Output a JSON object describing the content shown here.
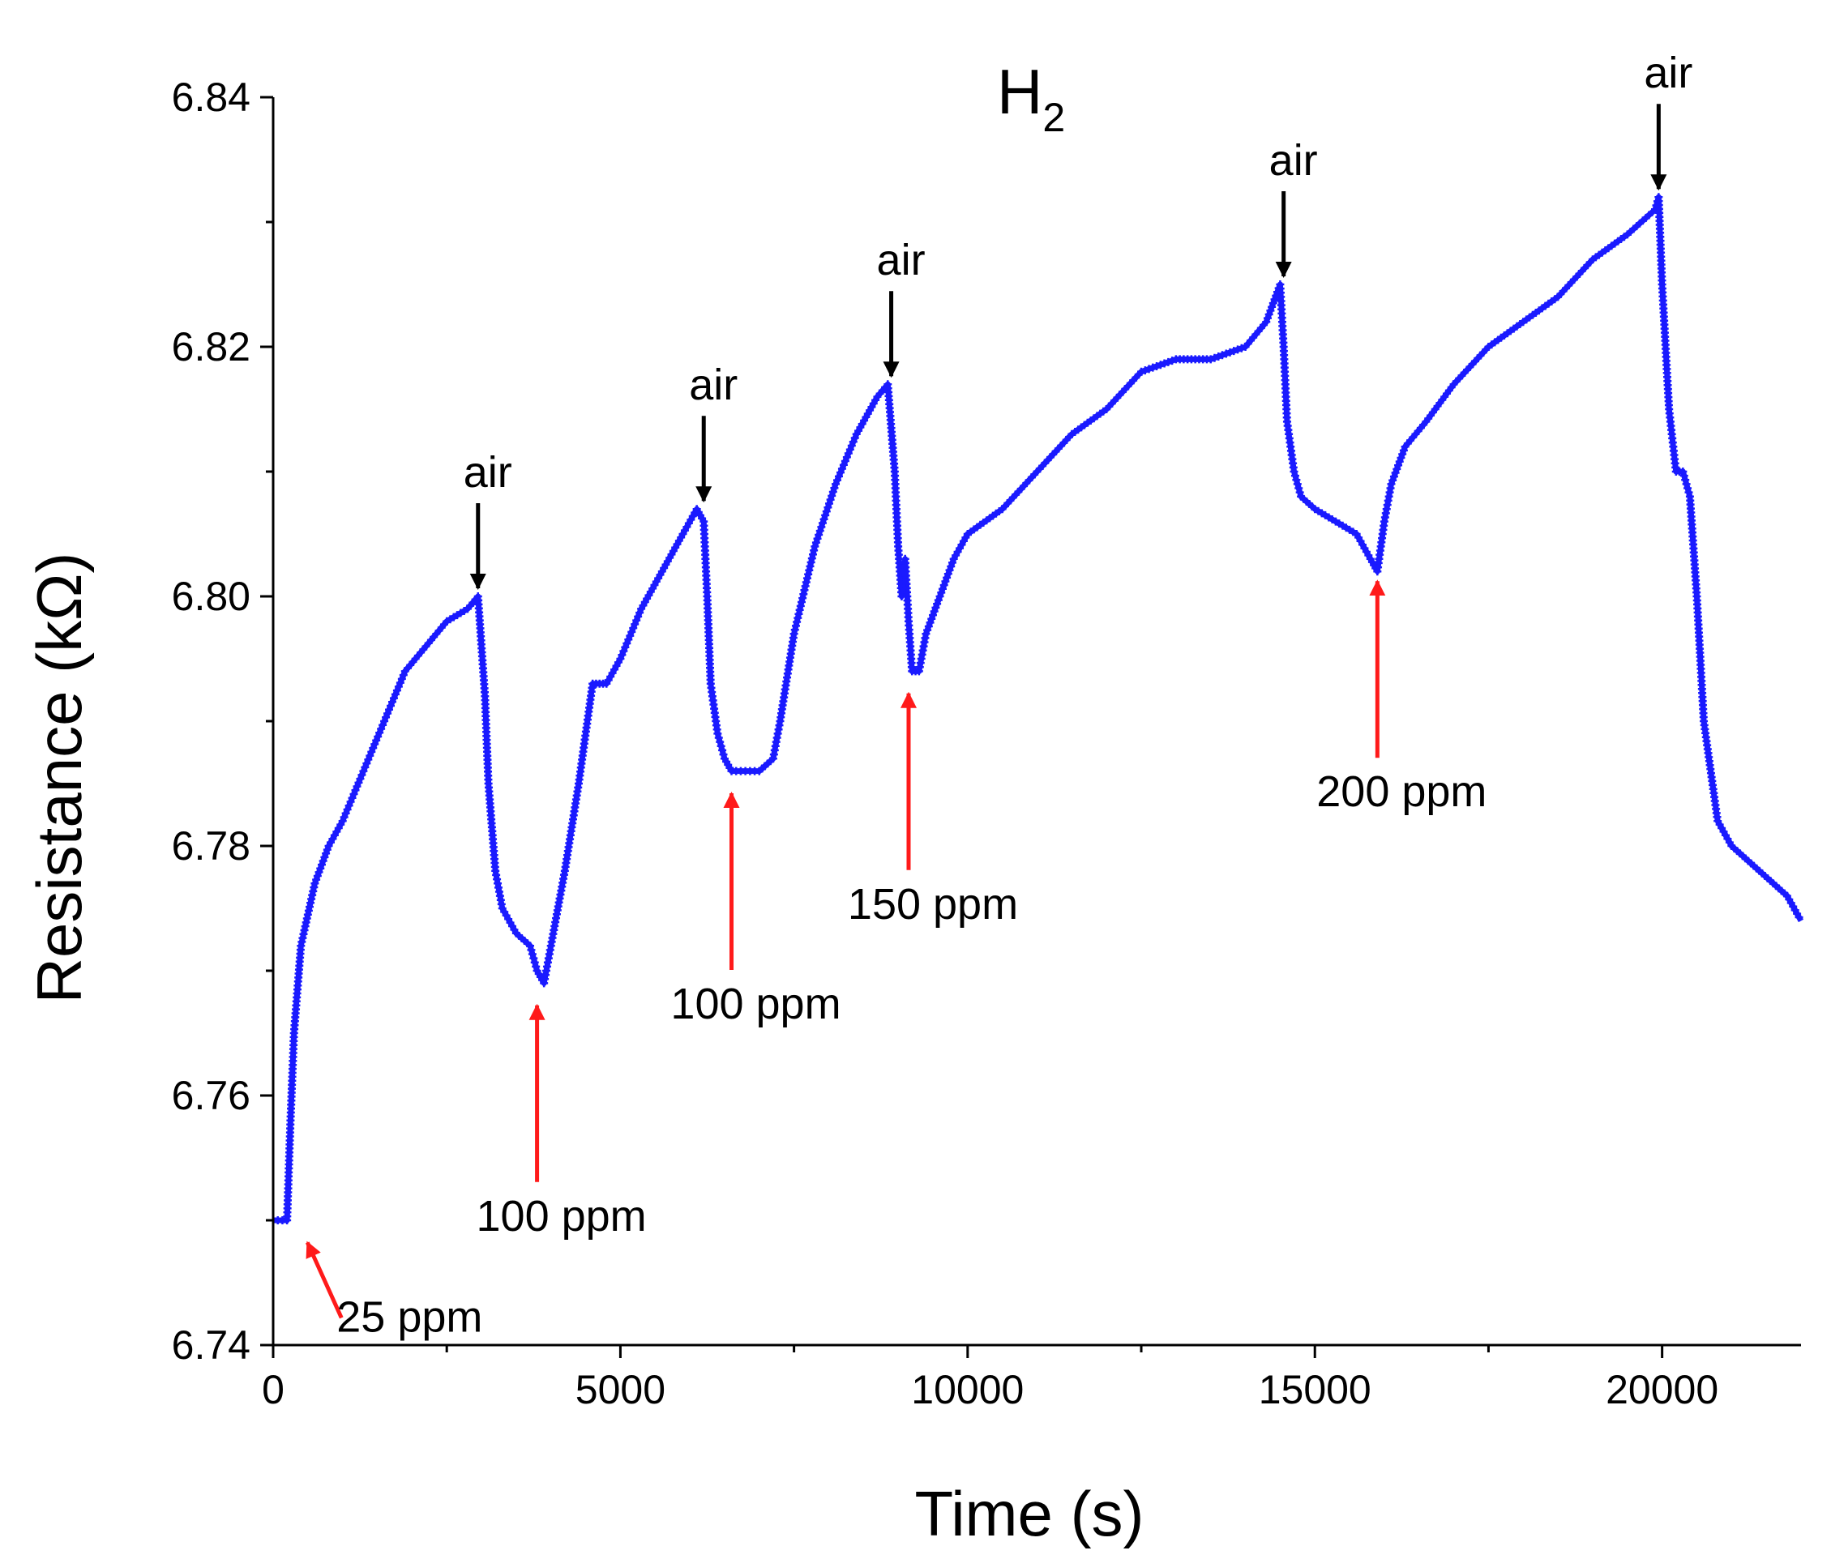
{
  "chart_data": {
    "type": "line",
    "title": "H",
    "title_subscript": "2",
    "xlabel": "Time (s)",
    "ylabel": "Resistance (kΩ)",
    "xlim": [
      0,
      22000
    ],
    "ylim": [
      6.74,
      6.84
    ],
    "x_ticks": [
      0,
      5000,
      10000,
      15000,
      20000
    ],
    "x_tick_labels": [
      "0",
      "5000",
      "10000",
      "15000",
      "20000"
    ],
    "y_ticks": [
      6.74,
      6.76,
      6.78,
      6.8,
      6.82,
      6.84
    ],
    "y_tick_labels": [
      "6.74",
      "6.76",
      "6.78",
      "6.80",
      "6.82",
      "6.84"
    ],
    "grid": false,
    "legend": "none",
    "series": [
      {
        "color": "#1a1aff",
        "marker": "cross",
        "x": [
          0,
          200,
          250,
          300,
          400,
          600,
          800,
          1000,
          1300,
          1600,
          1900,
          2200,
          2500,
          2800,
          2950,
          3050,
          3100,
          3200,
          3300,
          3500,
          3700,
          3800,
          3900,
          4000,
          4200,
          4400,
          4600,
          4700,
          4800,
          5000,
          5300,
          5600,
          5900,
          6100,
          6200,
          6250,
          6300,
          6400,
          6500,
          6600,
          6800,
          7000,
          7200,
          7300,
          7500,
          7800,
          8100,
          8400,
          8700,
          8850,
          8950,
          9000,
          9050,
          9100,
          9150,
          9200,
          9300,
          9400,
          9600,
          9800,
          10000,
          10500,
          11000,
          11500,
          12000,
          12500,
          13000,
          13500,
          14000,
          14300,
          14500,
          14550,
          14600,
          14700,
          14800,
          15000,
          15300,
          15600,
          15800,
          15900,
          16000,
          16100,
          16300,
          16600,
          17000,
          17500,
          18000,
          18500,
          19000,
          19500,
          19900,
          19950,
          20000,
          20100,
          20200,
          20300,
          20400,
          20500,
          20600,
          20800,
          21000,
          21200,
          21400,
          21600,
          21800,
          22000
        ],
        "y": [
          6.75,
          6.75,
          6.758,
          6.765,
          6.772,
          6.777,
          6.78,
          6.782,
          6.786,
          6.79,
          6.794,
          6.796,
          6.798,
          6.799,
          6.8,
          6.792,
          6.785,
          6.778,
          6.775,
          6.773,
          6.772,
          6.77,
          6.769,
          6.772,
          6.778,
          6.785,
          6.793,
          6.793,
          6.793,
          6.795,
          6.799,
          6.802,
          6.805,
          6.807,
          6.806,
          6.8,
          6.793,
          6.789,
          6.787,
          6.786,
          6.786,
          6.786,
          6.787,
          6.79,
          6.797,
          6.804,
          6.809,
          6.813,
          6.816,
          6.817,
          6.81,
          6.804,
          6.8,
          6.803,
          6.798,
          6.794,
          6.794,
          6.797,
          6.8,
          6.803,
          6.805,
          6.807,
          6.81,
          6.813,
          6.815,
          6.818,
          6.819,
          6.819,
          6.82,
          6.822,
          6.825,
          6.82,
          6.814,
          6.81,
          6.808,
          6.807,
          6.806,
          6.805,
          6.803,
          6.802,
          6.806,
          6.809,
          6.812,
          6.814,
          6.817,
          6.82,
          6.822,
          6.824,
          6.827,
          6.829,
          6.831,
          6.832,
          6.825,
          6.815,
          6.81,
          6.81,
          6.808,
          6.8,
          6.79,
          6.782,
          6.78,
          6.779,
          6.778,
          6.777,
          6.776,
          6.774
        ]
      }
    ],
    "annotations": [
      {
        "label": "air",
        "x": 2950,
        "y": 6.8,
        "color": "#000000",
        "direction": "down"
      },
      {
        "label": "air",
        "x": 6200,
        "y": 6.807,
        "color": "#000000",
        "direction": "down"
      },
      {
        "label": "air",
        "x": 8900,
        "y": 6.817,
        "color": "#000000",
        "direction": "down"
      },
      {
        "label": "air",
        "x": 14550,
        "y": 6.825,
        "color": "#000000",
        "direction": "down"
      },
      {
        "label": "air",
        "x": 19950,
        "y": 6.832,
        "color": "#000000",
        "direction": "down"
      },
      {
        "label": "25 ppm",
        "x": 400,
        "y": 6.749,
        "color": "#ff1a1a",
        "direction": "diagonal"
      },
      {
        "label": "100 ppm",
        "x": 3800,
        "y": 6.768,
        "color": "#ff1a1a",
        "direction": "up"
      },
      {
        "label": "100 ppm",
        "x": 6600,
        "y": 6.785,
        "color": "#ff1a1a",
        "direction": "up"
      },
      {
        "label": "150 ppm",
        "x": 9150,
        "y": 6.793,
        "color": "#ff1a1a",
        "direction": "up"
      },
      {
        "label": "200 ppm",
        "x": 15900,
        "y": 6.802,
        "color": "#ff1a1a",
        "direction": "up"
      }
    ]
  }
}
